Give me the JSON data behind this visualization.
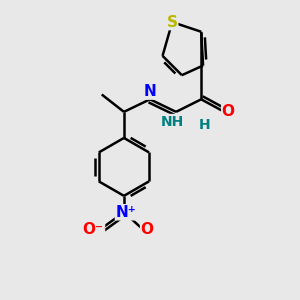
{
  "bg_color": "#e8e8e8",
  "bond_color": "#000000",
  "bond_width": 1.8,
  "dbo": 0.035,
  "S_color": "#b8b800",
  "N_color": "#0000ff",
  "O_color": "#ff0000",
  "H_color": "#008080",
  "C_color": "#000000",
  "fontsize": 10,
  "figsize": [
    3.0,
    3.0
  ],
  "dpi": 100,
  "xlim": [
    -1.0,
    1.1
  ],
  "ylim": [
    -1.5,
    1.55
  ]
}
